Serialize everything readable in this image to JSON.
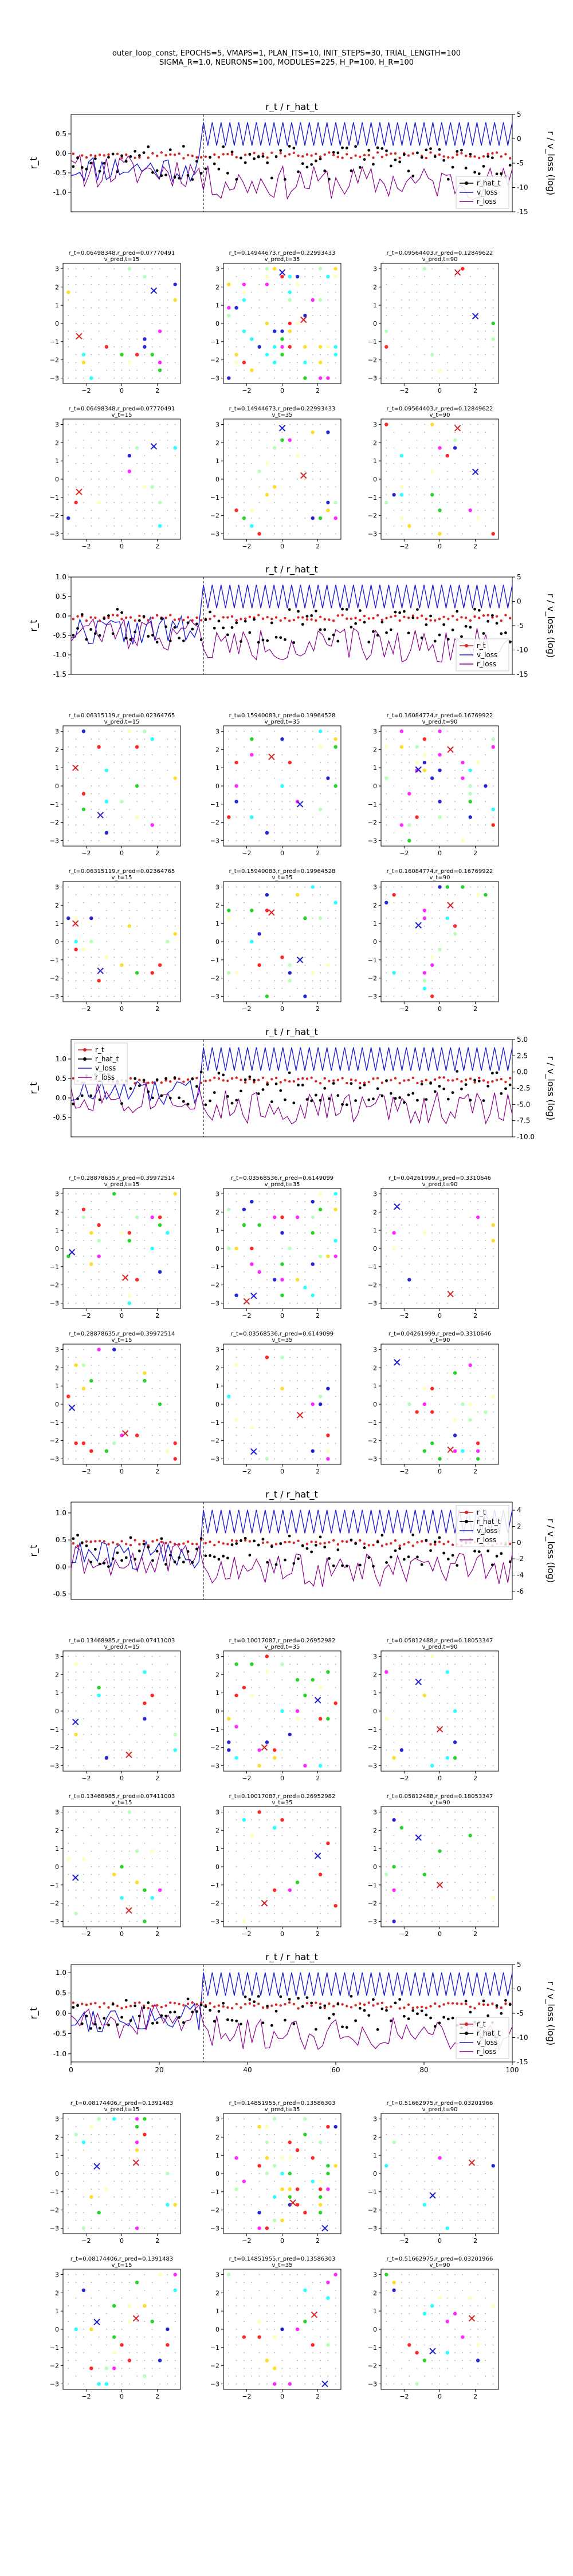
{
  "figure": {
    "title_line1": "outer_loop_const, EPOCHS=5, VMAPS=1, PLAN_ITS=10, INIT_STEPS=30, TRIAL_LENGTH=100",
    "title_line2": "SIGMA_R=1.0, NEURONS=100, MODULES=225, H_P=100, H_R=100"
  },
  "colors": {
    "r_t": "#d62728",
    "r_hat_t": "#000000",
    "v_loss": "#1f1fd0",
    "r_loss": "#8b008b",
    "pred_marker": "#d62728",
    "dot_palette": [
      "#ffd700",
      "#00ffff",
      "#ff00ff",
      "#00cc00",
      "#0000cc",
      "#ff0000",
      "#ffffaa",
      "#aaffaa"
    ]
  },
  "chart_data": [
    {
      "type": "line",
      "title": "r_t / r_hat_t",
      "ylabel": "r_t",
      "ylabel_right": "r / v_loss (log)",
      "xlim": [
        0,
        100
      ],
      "ylim": [
        -1.5,
        1.0
      ],
      "yticks": [
        -1.0,
        -0.5,
        0.0,
        0.5
      ],
      "ylim_right": [
        -15,
        5
      ],
      "yticks_right": [
        -15,
        -10,
        -5,
        0,
        5
      ],
      "legend": [
        "r_hat_t",
        "v_loss",
        "r_loss"
      ],
      "legend_placement": "bottom-right",
      "xtick_labels": false,
      "vline_x": 30,
      "seed": 11,
      "grids": [
        {
          "title": "r_t=0.06498348,r_pred=0.07770491",
          "subtitle": "v_pred,t=15",
          "seed": 101,
          "density": 0.35,
          "crosses": [
            [
              1.8,
              1.8
            ],
            [
              -2.4,
              -0.7
            ]
          ]
        },
        {
          "title": "r_t=0.14944673,r_pred=0.22993433",
          "subtitle": "v_pred,t=35",
          "seed": 102,
          "density": 0.8,
          "crosses": [
            [
              0.0,
              2.8
            ],
            [
              1.2,
              0.2
            ]
          ]
        },
        {
          "title": "r_t=0.09564403,r_pred=0.12849622",
          "subtitle": "v_pred,t=90",
          "seed": 103,
          "density": 0.15,
          "crosses": [
            [
              2.0,
              0.4
            ],
            [
              1.0,
              2.8
            ]
          ]
        },
        {
          "title": "r_t=0.06498348,r_pred=0.07770491",
          "subtitle": "v_t=15",
          "seed": 104,
          "density": 0.3,
          "crosses": [
            [
              1.8,
              1.8
            ],
            [
              -2.4,
              -0.7
            ]
          ]
        },
        {
          "title": "r_t=0.14944673,r_pred=0.22993433",
          "subtitle": "v_t=35",
          "seed": 105,
          "density": 0.4,
          "crosses": [
            [
              0.0,
              2.8
            ],
            [
              1.2,
              0.2
            ]
          ]
        },
        {
          "title": "r_t=0.09564403,r_pred=0.12849622",
          "subtitle": "v_t=90",
          "seed": 106,
          "density": 0.3,
          "crosses": [
            [
              2.0,
              0.4
            ],
            [
              1.0,
              2.8
            ]
          ]
        }
      ]
    },
    {
      "type": "line",
      "title": "r_t / r_hat_t",
      "ylabel": "r_t",
      "ylabel_right": "r / v_loss (log)",
      "xlim": [
        0,
        100
      ],
      "ylim": [
        -1.5,
        1.0
      ],
      "yticks": [
        -1.5,
        -1.0,
        -0.5,
        0.0,
        0.5,
        1.0
      ],
      "ylim_right": [
        -15,
        5
      ],
      "yticks_right": [
        -15,
        -10,
        -5,
        0,
        5
      ],
      "legend": [
        "r_t",
        "v_loss",
        "r_loss"
      ],
      "legend_placement": "bottom-right",
      "xtick_labels": false,
      "vline_x": 30,
      "seed": 22,
      "grids": [
        {
          "title": "r_t=0.06315119,r_pred=0.02364765",
          "subtitle": "v_pred,t=15",
          "seed": 201,
          "density": 0.25,
          "crosses": [
            [
              -1.2,
              -1.6
            ],
            [
              -2.6,
              1.0
            ]
          ]
        },
        {
          "title": "r_t=0.15940083,r_pred=0.19964528",
          "subtitle": "v_pred,t=35",
          "seed": 202,
          "density": 0.15,
          "crosses": [
            [
              1.0,
              -1.0
            ],
            [
              -0.6,
              1.6
            ]
          ]
        },
        {
          "title": "r_t=0.16084774,r_pred=0.16769922",
          "subtitle": "v_pred,t=90",
          "seed": 203,
          "density": 0.75,
          "crosses": [
            [
              -1.2,
              0.9
            ],
            [
              0.6,
              2.0
            ]
          ]
        },
        {
          "title": "r_t=0.06315119,r_pred=0.02364765",
          "subtitle": "v_t=15",
          "seed": 204,
          "density": 0.3,
          "crosses": [
            [
              -1.2,
              -1.6
            ],
            [
              -2.6,
              1.0
            ]
          ]
        },
        {
          "title": "r_t=0.15940083,r_pred=0.19964528",
          "subtitle": "v_t=35",
          "seed": 205,
          "density": 0.35,
          "crosses": [
            [
              1.0,
              -1.0
            ],
            [
              -0.6,
              1.6
            ]
          ]
        },
        {
          "title": "r_t=0.16084774,r_pred=0.16769922",
          "subtitle": "v_t=90",
          "seed": 206,
          "density": 0.35,
          "crosses": [
            [
              -1.2,
              0.9
            ],
            [
              0.6,
              2.0
            ]
          ]
        }
      ]
    },
    {
      "type": "line",
      "title": "r_t / r_hat_t",
      "ylabel": "r_t",
      "ylabel_right": "r / v_loss (log)",
      "xlim": [
        0,
        100
      ],
      "ylim": [
        -1.0,
        1.5
      ],
      "yticks": [
        -0.5,
        0.0,
        0.5,
        1.0
      ],
      "ylim_right": [
        -10,
        5
      ],
      "yticks_right": [
        -10.0,
        -7.5,
        -5.0,
        -2.5,
        0.0,
        2.5,
        5.0
      ],
      "legend": [
        "r_t",
        "r_hat_t",
        "v_loss",
        "r_loss"
      ],
      "legend_placement": "top-left",
      "xtick_labels": false,
      "vline_x": 30,
      "seed": 33,
      "grids": [
        {
          "title": "r_t=0.28878635,r_pred=0.39972514",
          "subtitle": "v_pred,t=15",
          "seed": 301,
          "density": 0.3,
          "crosses": [
            [
              -2.8,
              -0.2
            ],
            [
              0.2,
              -1.6
            ]
          ]
        },
        {
          "title": "r_t=0.03568536,r_pred=0.6149099",
          "subtitle": "v_pred,t=35",
          "seed": 302,
          "density": 0.8,
          "crosses": [
            [
              -1.6,
              -2.6
            ],
            [
              -2.0,
              -2.9
            ]
          ]
        },
        {
          "title": "r_t=0.04261999,r_pred=0.3310646",
          "subtitle": "v_pred,t=90",
          "seed": 303,
          "density": 0.12,
          "crosses": [
            [
              -2.4,
              2.3
            ],
            [
              0.6,
              -2.5
            ]
          ]
        },
        {
          "title": "r_t=0.28878635,r_pred=0.39972514",
          "subtitle": "v_t=15",
          "seed": 304,
          "density": 0.3,
          "crosses": [
            [
              -2.8,
              -0.2
            ],
            [
              0.2,
              -1.6
            ]
          ]
        },
        {
          "title": "r_t=0.03568536,r_pred=0.6149099",
          "subtitle": "v_t=35",
          "seed": 305,
          "density": 0.3,
          "crosses": [
            [
              -1.6,
              -2.6
            ],
            [
              1.0,
              -0.6
            ]
          ]
        },
        {
          "title": "r_t=0.04261999,r_pred=0.3310646",
          "subtitle": "v_t=90",
          "seed": 306,
          "density": 0.3,
          "crosses": [
            [
              -2.4,
              2.3
            ],
            [
              0.6,
              -2.5
            ]
          ]
        }
      ]
    },
    {
      "type": "line",
      "title": "r_t / r_hat_t",
      "ylabel": "r_t",
      "ylabel_right": "r / v_loss (log)",
      "xlim": [
        0,
        100
      ],
      "ylim": [
        -0.6,
        1.2
      ],
      "yticks": [
        -0.5,
        0.0,
        0.5,
        1.0
      ],
      "ylim_right": [
        -7,
        5
      ],
      "yticks_right": [
        -6,
        -4,
        -2,
        0,
        2,
        4
      ],
      "legend": [
        "r_t",
        "r_hat_t",
        "v_loss",
        "r_loss"
      ],
      "legend_placement": "top-right",
      "xtick_labels": false,
      "vline_x": 30,
      "seed": 44,
      "grids": [
        {
          "title": "r_t=0.13468985,r_pred=0.07411003",
          "subtitle": "v_pred,t=15",
          "seed": 401,
          "density": 0.3,
          "crosses": [
            [
              -2.6,
              -0.6
            ],
            [
              0.4,
              -2.4
            ]
          ]
        },
        {
          "title": "r_t=0.10017087,r_pred=0.26952982",
          "subtitle": "v_pred,t=35",
          "seed": 402,
          "density": 0.75,
          "crosses": [
            [
              2.0,
              0.6
            ],
            [
              -1.0,
              -2.0
            ]
          ]
        },
        {
          "title": "r_t=0.05812488,r_pred=0.18053347",
          "subtitle": "v_pred,t=90",
          "seed": 403,
          "density": 0.15,
          "crosses": [
            [
              -1.2,
              1.6
            ],
            [
              0.0,
              -1.0
            ]
          ]
        },
        {
          "title": "r_t=0.13468985,r_pred=0.07411003",
          "subtitle": "v_t=15",
          "seed": 404,
          "density": 0.3,
          "crosses": [
            [
              -2.6,
              -0.6
            ],
            [
              0.4,
              -2.4
            ]
          ]
        },
        {
          "title": "r_t=0.10017087,r_pred=0.26952982",
          "subtitle": "v_t=35",
          "seed": 405,
          "density": 0.3,
          "crosses": [
            [
              2.0,
              0.6
            ],
            [
              -1.0,
              -2.0
            ]
          ]
        },
        {
          "title": "r_t=0.05812488,r_pred=0.18053347",
          "subtitle": "v_t=90",
          "seed": 406,
          "density": 0.3,
          "crosses": [
            [
              -1.2,
              1.6
            ],
            [
              0.0,
              -1.0
            ]
          ]
        }
      ]
    },
    {
      "type": "line",
      "title": "r_t / r_hat_t",
      "ylabel": "r_t",
      "ylabel_right": "r / v_loss (log)",
      "xlim": [
        0,
        100
      ],
      "ylim": [
        -1.2,
        1.2
      ],
      "yticks": [
        -1.0,
        -0.5,
        0.0,
        0.5,
        1.0
      ],
      "ylim_right": [
        -15,
        5
      ],
      "yticks_right": [
        -15,
        -10,
        -5,
        0,
        5
      ],
      "legend": [
        "r_t",
        "r_hat_t",
        "v_loss",
        "r_loss"
      ],
      "legend_placement": "bottom-right",
      "xtick_labels": true,
      "xticks": [
        0,
        20,
        40,
        60,
        80,
        100
      ],
      "vline_x": 30,
      "seed": 55,
      "grids": [
        {
          "title": "r_t=0.08174406,r_pred=0.1391483",
          "subtitle": "v_pred,t=15",
          "seed": 501,
          "density": 0.3,
          "crosses": [
            [
              -1.4,
              0.4
            ],
            [
              0.8,
              0.6
            ]
          ]
        },
        {
          "title": "r_t=0.14851955,r_pred=0.13586303",
          "subtitle": "v_pred,t=35",
          "seed": 502,
          "density": 0.8,
          "crosses": [
            [
              2.4,
              -3.0
            ],
            [
              0.6,
              -1.6
            ]
          ]
        },
        {
          "title": "r_t=0.51662975,r_pred=0.03201966",
          "subtitle": "v_pred,t=90",
          "seed": 503,
          "density": 0.15,
          "crosses": [
            [
              -0.4,
              -1.2
            ],
            [
              1.8,
              0.6
            ]
          ]
        },
        {
          "title": "r_t=0.08174406,r_pred=0.1391483",
          "subtitle": "v_t=15",
          "seed": 504,
          "density": 0.3,
          "crosses": [
            [
              -1.4,
              0.4
            ],
            [
              0.8,
              0.6
            ]
          ]
        },
        {
          "title": "r_t=0.14851955,r_pred=0.13586303",
          "subtitle": "v_t=35",
          "seed": 505,
          "density": 0.3,
          "crosses": [
            [
              2.4,
              -3.0
            ],
            [
              1.8,
              0.8
            ]
          ]
        },
        {
          "title": "r_t=0.51662975,r_pred=0.03201966",
          "subtitle": "v_t=90",
          "seed": 506,
          "density": 0.3,
          "crosses": [
            [
              -0.4,
              -1.2
            ],
            [
              1.8,
              0.6
            ]
          ]
        }
      ]
    }
  ]
}
